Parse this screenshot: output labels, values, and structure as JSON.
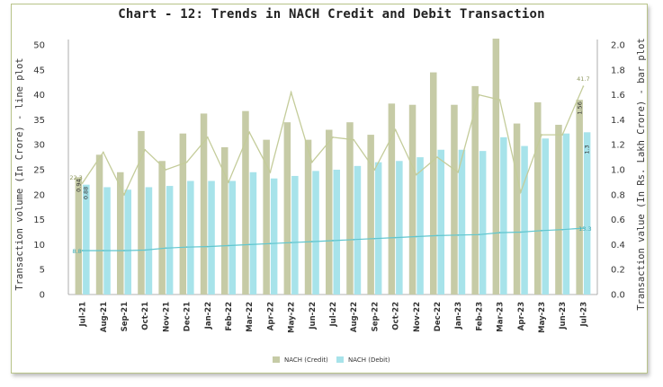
{
  "chart_data": {
    "type": "bar",
    "title": "Chart - 12: Trends in NACH Credit and Debit Transaction",
    "ylabel_left": "Transaction volume (In Crore) - line plot",
    "ylabel_right": "Transaction value (In Rs. Lakh Crore) - bar plot",
    "ylim_left": [
      0,
      50
    ],
    "ylim_right": [
      0,
      2.0
    ],
    "yticks_left": [
      "0",
      "5",
      "10",
      "15",
      "20",
      "25",
      "30",
      "35",
      "40",
      "45",
      "50"
    ],
    "yticks_right": [
      "0.0",
      "0.2",
      "0.4",
      "0.6",
      "0.8",
      "1.0",
      "1.2",
      "1.4",
      "1.6",
      "1.8",
      "2.0"
    ],
    "categories": [
      "Jul-21",
      "Aug-21",
      "Sep-21",
      "Oct-21",
      "Nov-21",
      "Dec-21",
      "Jan-22",
      "Feb-22",
      "Mar-22",
      "Apr-22",
      "May-22",
      "Jun-22",
      "Jul-22",
      "Aug-22",
      "Sep-22",
      "Oct-22",
      "Nov-22",
      "Dec-22",
      "Jan-23",
      "Feb-23",
      "Mar-23",
      "Apr-23",
      "May-23",
      "Jun-23",
      "Jul-23"
    ],
    "bar_series": [
      {
        "name": "NACH (Credit)",
        "color": "#c6cba6",
        "values": [
          0.94,
          1.12,
          0.98,
          1.31,
          1.07,
          1.29,
          1.45,
          1.18,
          1.47,
          1.24,
          1.38,
          1.24,
          1.32,
          1.38,
          1.28,
          1.53,
          1.52,
          1.78,
          1.52,
          1.67,
          2.05,
          1.37,
          1.54,
          1.36,
          1.56
        ]
      },
      {
        "name": "NACH (Debit)",
        "color": "#a7e3ea",
        "values": [
          0.88,
          0.86,
          0.84,
          0.86,
          0.87,
          0.91,
          0.91,
          0.91,
          0.98,
          0.93,
          0.95,
          0.99,
          1.0,
          1.03,
          1.06,
          1.07,
          1.1,
          1.16,
          1.16,
          1.15,
          1.26,
          1.19,
          1.25,
          1.29,
          1.3
        ]
      }
    ],
    "line_series": [
      {
        "color": "#c4cc9a",
        "values": [
          22.3,
          28.5,
          20.0,
          29.0,
          25.0,
          26.5,
          31.5,
          22.5,
          32.5,
          24.5,
          40.5,
          26.5,
          31.5,
          31.0,
          25.0,
          33.0,
          24.0,
          27.5,
          24.5,
          40.0,
          39.0,
          20.5,
          32.0,
          32.0,
          41.7
        ]
      },
      {
        "color": "#5fc6cf",
        "values": [
          8.8,
          8.8,
          8.8,
          8.9,
          9.3,
          9.5,
          9.6,
          9.8,
          10.0,
          10.2,
          10.4,
          10.6,
          10.8,
          11.0,
          11.2,
          11.4,
          11.6,
          11.8,
          11.9,
          12.0,
          12.4,
          12.5,
          12.8,
          13.0,
          13.3
        ]
      }
    ],
    "annotations": {
      "credit_line_first": "22.3",
      "credit_line_last": "41.7",
      "debit_line_first": "8.8",
      "debit_line_last": "13.3",
      "credit_bar_first": "0.94",
      "debit_bar_first": "0.88",
      "credit_bar_last": "1.56",
      "debit_bar_last": "1.3"
    },
    "legend": [
      "NACH (Credit)",
      "NACH (Debit)"
    ],
    "legend_position": "bottom",
    "grid": false
  }
}
